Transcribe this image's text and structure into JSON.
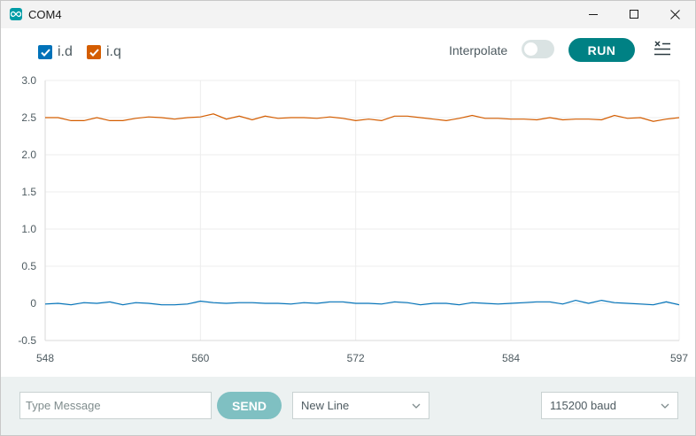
{
  "window": {
    "title": "COM4"
  },
  "toolbar": {
    "legend": [
      {
        "label": "i.d",
        "color": "#0072b9",
        "checked": true
      },
      {
        "label": "i.q",
        "color": "#d45d00",
        "checked": true
      }
    ],
    "interpolate_label": "Interpolate",
    "interpolate_on": false,
    "run_label": "RUN"
  },
  "chart_data": {
    "type": "line",
    "x_ticks": [
      "548",
      "560",
      "572",
      "584",
      "597"
    ],
    "y_ticks": [
      "3.0",
      "2.5",
      "2.0",
      "1.5",
      "1.0",
      "0.5",
      "0",
      "-0.5"
    ],
    "xlim": [
      548,
      597
    ],
    "ylim": [
      -0.5,
      3.0
    ],
    "grid": true,
    "series": [
      {
        "name": "i.d",
        "color": "#0072b9",
        "values": [
          -0.01,
          0.0,
          -0.02,
          0.01,
          0.0,
          0.02,
          -0.02,
          0.01,
          0.0,
          -0.02,
          -0.02,
          -0.01,
          0.03,
          0.01,
          0.0,
          0.01,
          0.01,
          0.0,
          0.0,
          -0.01,
          0.01,
          0.0,
          0.02,
          0.02,
          0.0,
          0.0,
          -0.01,
          0.02,
          0.01,
          -0.02,
          0.0,
          0.0,
          -0.02,
          0.01,
          0.0,
          -0.01,
          0.0,
          0.01,
          0.02,
          0.02,
          -0.01,
          0.04,
          0.0,
          0.04,
          0.01,
          0.0,
          -0.01,
          -0.02,
          0.02,
          -0.02
        ]
      },
      {
        "name": "i.q",
        "color": "#d45d00",
        "values": [
          2.5,
          2.5,
          2.46,
          2.46,
          2.5,
          2.46,
          2.46,
          2.49,
          2.51,
          2.5,
          2.48,
          2.5,
          2.51,
          2.55,
          2.48,
          2.52,
          2.47,
          2.52,
          2.49,
          2.5,
          2.5,
          2.49,
          2.51,
          2.49,
          2.46,
          2.48,
          2.46,
          2.52,
          2.52,
          2.5,
          2.48,
          2.46,
          2.49,
          2.53,
          2.49,
          2.49,
          2.48,
          2.48,
          2.47,
          2.5,
          2.47,
          2.48,
          2.48,
          2.47,
          2.53,
          2.49,
          2.5,
          2.45,
          2.48,
          2.5
        ]
      }
    ]
  },
  "bottom": {
    "message_placeholder": "Type Message",
    "send_label": "SEND",
    "line_ending": "New Line",
    "baud": "115200 baud"
  },
  "icons": {
    "app": "arduino-infinity-icon",
    "minimize": "minimize-icon",
    "maximize": "maximize-icon",
    "close": "close-icon",
    "clear": "clear-list-icon",
    "dropdown": "chevron-down-icon",
    "checkbox": "checkmark-icon"
  }
}
